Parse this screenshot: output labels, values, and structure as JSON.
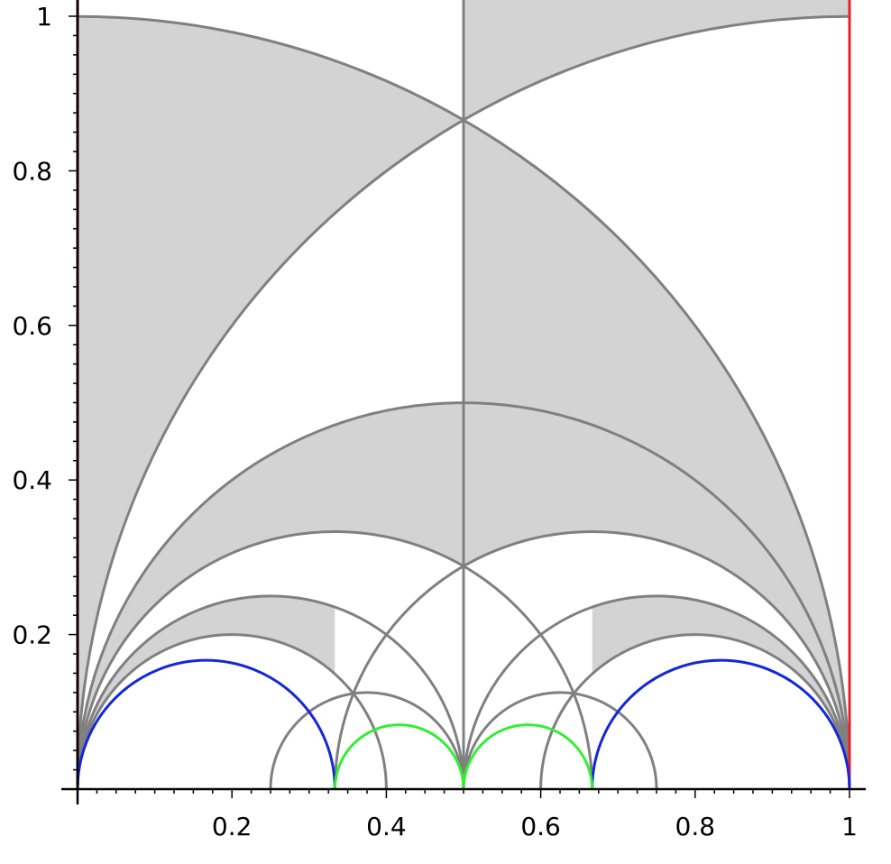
{
  "chart_data": {
    "type": "line",
    "title": "",
    "xlabel": "",
    "ylabel": "",
    "xlim": [
      0,
      1
    ],
    "ylim": [
      0,
      1
    ],
    "x_ticks": [
      0.2,
      0.4,
      0.6,
      0.8,
      1
    ],
    "x_tick_labels": [
      "0.2",
      "0.4",
      "0.6",
      "0.8",
      "1"
    ],
    "y_ticks": [
      0.2,
      0.4,
      0.6,
      0.8,
      1
    ],
    "y_tick_labels": [
      "0.2",
      "0.4",
      "0.6",
      "0.8",
      "1"
    ],
    "grid": false,
    "colors": {
      "fill": "#d3d3d3",
      "edge": "#808080",
      "boundary_left": "#8b0000",
      "boundary_right": "#e8202a",
      "blue_arcs": "#1428d8",
      "green_arcs": "#33ee33"
    },
    "shaded_regions": [
      {
        "kind": "between_vertical_and_arc",
        "x0": 0,
        "arc_center": 0,
        "arc_radius": 1,
        "outer_arc_center": 1,
        "outer_arc_radius": 1,
        "x_range": [
          0,
          0.5
        ]
      },
      {
        "kind": "above_arc",
        "arc_center": 1,
        "arc_radius": 1,
        "x_range": [
          0.5,
          1
        ]
      },
      {
        "kind": "between_arcs",
        "outer_center": 0,
        "outer_radius": 1,
        "inner_center": 0.5,
        "inner_radius": 0.5,
        "x_range": [
          0.5,
          1
        ]
      },
      {
        "kind": "between_arcs",
        "outer_center": 0.5,
        "outer_radius": 0.5,
        "inner_center": 0.3333,
        "inner_radius": 0.3333,
        "x_range": [
          0,
          0.5
        ]
      },
      {
        "kind": "between_arcs",
        "outer_center": 0.6667,
        "outer_radius": 0.3333,
        "inner_center": 0.5,
        "inner_radius": 0.5,
        "x_range": [
          0.5,
          1
        ]
      },
      {
        "kind": "between_arcs",
        "outer_center": 0.25,
        "outer_radius": 0.25,
        "inner_center": 0.2,
        "inner_radius": 0.2,
        "x_range": [
          0,
          0.3333
        ]
      },
      {
        "kind": "between_arcs",
        "outer_center": 0.75,
        "outer_radius": 0.25,
        "inner_center": 0.8,
        "inner_radius": 0.2,
        "x_range": [
          0.6667,
          1
        ]
      }
    ],
    "arcs_gray": [
      {
        "center": 0,
        "radius": 1
      },
      {
        "center": 1,
        "radius": 1
      },
      {
        "center": 0.5,
        "radius": 0.5
      },
      {
        "center": 0.3333,
        "radius": 0.3333
      },
      {
        "center": 0.6667,
        "radius": 0.3333
      },
      {
        "center": 0.25,
        "radius": 0.25
      },
      {
        "center": 0.75,
        "radius": 0.25
      },
      {
        "center": 0.2,
        "radius": 0.2
      },
      {
        "center": 0.8,
        "radius": 0.2
      },
      {
        "center": 0.375,
        "radius": 0.125
      },
      {
        "center": 0.625,
        "radius": 0.125
      }
    ],
    "arcs_blue": [
      {
        "center": 0.1667,
        "radius": 0.1667
      },
      {
        "center": 0.8333,
        "radius": 0.1667
      }
    ],
    "arcs_green": [
      {
        "center": 0.4167,
        "radius": 0.0833
      },
      {
        "center": 0.5833,
        "radius": 0.0833
      }
    ],
    "vertical_lines": [
      {
        "x": 0,
        "color_key": "boundary_left"
      },
      {
        "x": 0.5,
        "color_key": "edge"
      },
      {
        "x": 1,
        "color_key": "boundary_right"
      }
    ]
  }
}
